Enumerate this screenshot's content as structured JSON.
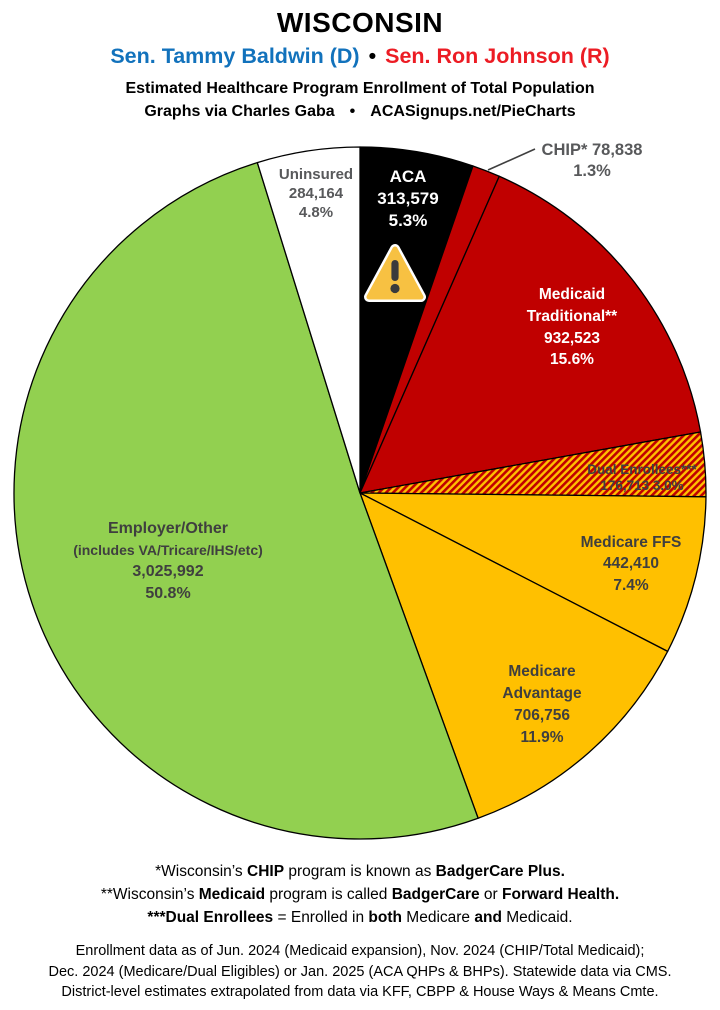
{
  "header": {
    "state": "WISCONSIN",
    "senator_dem": "Sen. Tammy Baldwin (D)",
    "separator": "•",
    "senator_rep": "Sen. Ron Johnson (R)",
    "subtitle": "Estimated Healthcare Program Enrollment of Total Population",
    "credit_author": "Graphs via Charles Gaba",
    "credit_separator": "•",
    "credit_site": "ACASignups.net/PieCharts",
    "colors": {
      "dem_blue": "#1272BC",
      "rep_red": "#EC1C24"
    }
  },
  "chart_data": {
    "type": "pie",
    "title": "Estimated Healthcare Program Enrollment of Total Population",
    "units": "people",
    "start_angle_deg": 0,
    "direction": "clockwise",
    "legend_position": "labels-on-slices",
    "segments": [
      {
        "id": "aca",
        "name": "ACA",
        "value": 313579,
        "value_str": "313,579",
        "pct": 5.3,
        "pct_str": "5.3%",
        "color": "#000000",
        "text_color": "#FFFFFF",
        "lines": [
          "ACA",
          "313,579",
          "5.3%"
        ],
        "icon": "warning-triangle"
      },
      {
        "id": "chip",
        "name": "CHIP*",
        "value": 78838,
        "value_str": "78,838",
        "pct": 1.3,
        "pct_str": "1.3%",
        "color": "#C00000",
        "text_color": "#58595B",
        "label_outside": true,
        "lines": [
          "CHIP* 78,838",
          "1.3%"
        ]
      },
      {
        "id": "medicaid_traditional",
        "name": "Medicaid Traditional**",
        "value": 932523,
        "value_str": "932,523",
        "pct": 15.6,
        "pct_str": "15.6%",
        "color": "#C00000",
        "text_color": "#FFFFFF",
        "lines": [
          "Medicaid",
          "Traditional**",
          "932,523",
          "15.6%"
        ]
      },
      {
        "id": "dual_enrollees",
        "name": "Dual Enrollees***",
        "value": 176713,
        "value_str": "176,713",
        "pct": 3.0,
        "pct_str": "3.0%",
        "color": "#FFC000",
        "pattern": "hatch",
        "hatch_stripe_color": "#C00000",
        "text_color": "#3F3F3F",
        "lines": [
          "Dual Enrollees***",
          "176,713 3.0%"
        ]
      },
      {
        "id": "medicare_ffs",
        "name": "Medicare FFS",
        "value": 442410,
        "value_str": "442,410",
        "pct": 7.4,
        "pct_str": "7.4%",
        "color": "#FFC000",
        "text_color": "#3F3F3F",
        "lines": [
          "Medicare FFS",
          "442,410",
          "7.4%"
        ]
      },
      {
        "id": "medicare_advantage",
        "name": "Medicare Advantage",
        "value": 706756,
        "value_str": "706,756",
        "pct": 11.9,
        "pct_str": "11.9%",
        "color": "#FFC000",
        "text_color": "#3F3F3F",
        "lines": [
          "Medicare",
          "Advantage",
          "706,756",
          "11.9%"
        ]
      },
      {
        "id": "employer_other",
        "name": "Employer/Other (includes VA/Tricare/IHS/etc)",
        "value": 3025992,
        "value_str": "3,025,992",
        "pct": 50.8,
        "pct_str": "50.8%",
        "color": "#92D050",
        "text_color": "#3F3F3F",
        "lines": [
          "Employer/Other",
          "(includes VA/Tricare/IHS/etc)",
          "3,025,992",
          "50.8%"
        ]
      },
      {
        "id": "uninsured",
        "name": "Uninsured",
        "value": 284164,
        "value_str": "284,164",
        "pct": 4.8,
        "pct_str": "4.8%",
        "color": "#FFFFFF",
        "text_color": "#58595B",
        "lines": [
          "Uninsured",
          "284,164",
          "4.8%"
        ]
      }
    ]
  },
  "icons": {
    "warning_triangle": {
      "fill": "#F7C142",
      "border": "#FFFFFF",
      "mark": "#3A3A3C"
    }
  },
  "footnotes": [
    {
      "runs": [
        {
          "t": "*Wisconsin’s ",
          "b": false
        },
        {
          "t": "CHIP",
          "b": true
        },
        {
          "t": " program is known as ",
          "b": false
        },
        {
          "t": "BadgerCare Plus.",
          "b": true
        }
      ]
    },
    {
      "runs": [
        {
          "t": "**Wisconsin’s ",
          "b": false
        },
        {
          "t": "Medicaid",
          "b": true
        },
        {
          "t": " program is called ",
          "b": false
        },
        {
          "t": "BadgerCare",
          "b": true
        },
        {
          "t": " or ",
          "b": false
        },
        {
          "t": "Forward Health.",
          "b": true
        }
      ]
    },
    {
      "runs": [
        {
          "t": "***Dual Enrollees",
          "b": true
        },
        {
          "t": " = Enrolled in ",
          "b": false
        },
        {
          "t": "both",
          "b": true
        },
        {
          "t": " Medicare ",
          "b": false
        },
        {
          "t": "and",
          "b": true
        },
        {
          "t": " Medicaid.",
          "b": false
        }
      ]
    }
  ],
  "source_note": [
    "Enrollment data as of Jun. 2024 (Medicaid expansion), Nov. 2024 (CHIP/Total Medicaid);",
    "Dec. 2024 (Medicare/Dual Eligibles) or Jan. 2025 (ACA QHPs & BHPs). Statewide data via CMS.",
    "District-level estimates extrapolated from data via KFF, CBPP & House Ways & Means Cmte."
  ]
}
